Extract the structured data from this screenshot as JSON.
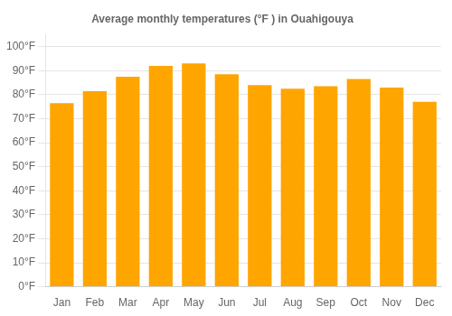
{
  "chart_data": {
    "type": "bar",
    "title": "Average monthly temperatures (°F ) in Ouahigouya",
    "categories": [
      "Jan",
      "Feb",
      "Mar",
      "Apr",
      "May",
      "Jun",
      "Jul",
      "Aug",
      "Sep",
      "Oct",
      "Nov",
      "Dec"
    ],
    "values": [
      76.5,
      81.5,
      87.5,
      92.0,
      93.0,
      88.5,
      84.0,
      82.5,
      83.5,
      86.5,
      83.0,
      77.0
    ],
    "color": "#FFA500",
    "ylim": [
      0,
      105
    ],
    "yticks": [
      {
        "value": 0,
        "label": "0°F"
      },
      {
        "value": 10,
        "label": "10°F"
      },
      {
        "value": 20,
        "label": "20°F"
      },
      {
        "value": 30,
        "label": "30°F"
      },
      {
        "value": 40,
        "label": "40°F"
      },
      {
        "value": 50,
        "label": "50°F"
      },
      {
        "value": 60,
        "label": "60°F"
      },
      {
        "value": 70,
        "label": "70°F"
      },
      {
        "value": 80,
        "label": "80°F"
      },
      {
        "value": 90,
        "label": "90°F"
      },
      {
        "value": 100,
        "label": "100°F"
      }
    ],
    "grid": true
  }
}
